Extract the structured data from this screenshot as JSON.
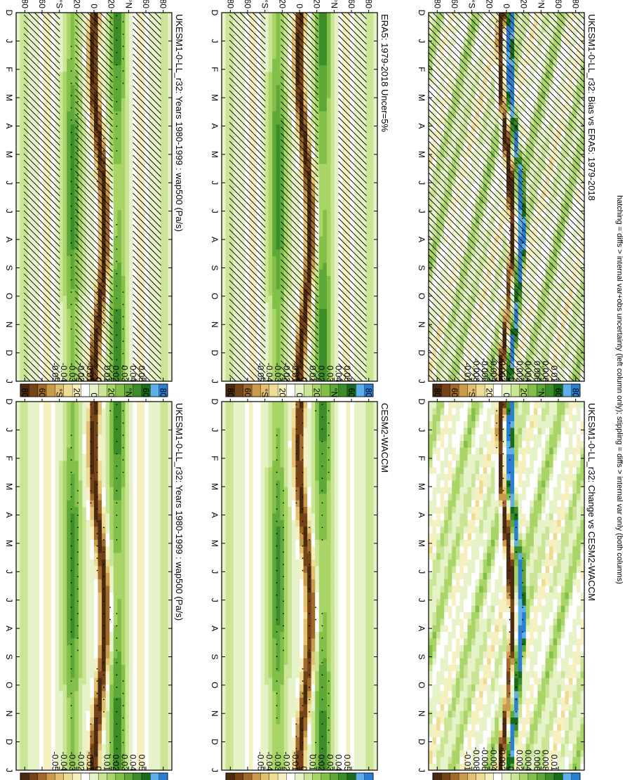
{
  "figure": {
    "footnote": "hatching = diffs > internal var+obs uncertainty (left column only); stippling = diffs > internal var only (both columns)",
    "rotation_deg": 90
  },
  "chart_data": [
    {
      "type": "heatmap",
      "title": "UKESM1-0-LL_r32: Years 1980-1999 : wap500 (Pa/s)",
      "x": [
        "D",
        "J",
        "F",
        "M",
        "A",
        "M",
        "J",
        "J",
        "A",
        "S",
        "O",
        "N",
        "D",
        "J"
      ],
      "y": [
        "80",
        "60",
        "°N",
        "20",
        "0",
        "20",
        "°S",
        "60",
        "80"
      ],
      "ylim": [
        -90,
        90
      ],
      "colorbar": [
        "0.05",
        "0.04",
        "0.03",
        "0.02",
        "0.01",
        "0",
        "-0.01",
        "-0.02",
        "-0.03",
        "-0.04",
        "-0.05"
      ],
      "colors": [
        "#2a7fd4",
        "#5fb0e8",
        "#1a6b1a",
        "#3d8c2a",
        "#5ea83a",
        "#82c04a",
        "#a8d468",
        "#cbe596",
        "#e6f2c8",
        "#ffffff",
        "#f6f0c0",
        "#eedc94",
        "#e2c070",
        "#c99a4a",
        "#a06a2c",
        "#744418",
        "#4a2a10"
      ],
      "amplitude": 0.05,
      "hatching": true,
      "stippling": true
    },
    {
      "type": "heatmap",
      "title": "UKESM1-0-LL_r32: Years 1980-1999 : wap500 (Pa/s)",
      "x": [
        "D",
        "J",
        "F",
        "M",
        "A",
        "M",
        "J",
        "J",
        "A",
        "S",
        "O",
        "N",
        "D",
        "J"
      ],
      "y": [
        "80",
        "60",
        "°N",
        "20",
        "0",
        "20",
        "°S",
        "60",
        "80"
      ],
      "ylim": [
        -90,
        90
      ],
      "colorbar": [
        "0.05",
        "0.04",
        "0.03",
        "0.02",
        "0.01",
        "0",
        "-0.01",
        "-0.02",
        "-0.03",
        "-0.04",
        "-0.05"
      ],
      "colors": [
        "#2a7fd4",
        "#5fb0e8",
        "#1a6b1a",
        "#3d8c2a",
        "#5ea83a",
        "#82c04a",
        "#a8d468",
        "#cbe596",
        "#e6f2c8",
        "#ffffff",
        "#f6f0c0",
        "#eedc94",
        "#e2c070",
        "#c99a4a",
        "#a06a2c",
        "#744418",
        "#4a2a10"
      ],
      "amplitude": 0.05,
      "hatching": false,
      "stippling": true
    },
    {
      "type": "heatmap",
      "title": "ERA5: 1979-2018 Uncer=5%",
      "x": [
        "D",
        "J",
        "F",
        "M",
        "A",
        "M",
        "J",
        "J",
        "A",
        "S",
        "O",
        "N",
        "D",
        "J"
      ],
      "y": [
        "80",
        "60",
        "°N",
        "20",
        "0",
        "20",
        "°S",
        "60",
        "80"
      ],
      "ylim": [
        -90,
        90
      ],
      "colorbar": [
        "0.05",
        "0.04",
        "0.03",
        "0.02",
        "0.01",
        "0",
        "-0.01",
        "-0.02",
        "-0.03",
        "-0.04",
        "-0.05"
      ],
      "colors": [
        "#2a7fd4",
        "#5fb0e8",
        "#1a6b1a",
        "#3d8c2a",
        "#5ea83a",
        "#82c04a",
        "#a8d468",
        "#cbe596",
        "#e6f2c8",
        "#ffffff",
        "#f6f0c0",
        "#eedc94",
        "#e2c070",
        "#c99a4a",
        "#a06a2c",
        "#744418",
        "#4a2a10"
      ],
      "amplitude": 0.05,
      "hatching": true,
      "stippling": false
    },
    {
      "type": "heatmap",
      "title": "CESM2-WACCM",
      "x": [
        "D",
        "J",
        "F",
        "M",
        "A",
        "M",
        "J",
        "J",
        "A",
        "S",
        "O",
        "N",
        "D",
        "J"
      ],
      "y": [
        "80",
        "60",
        "°N",
        "20",
        "0",
        "20",
        "°S",
        "60",
        "80"
      ],
      "ylim": [
        -90,
        90
      ],
      "colorbar": [
        "0.05",
        "0.04",
        "0.03",
        "0.02",
        "0.01",
        "0",
        "-0.01",
        "-0.02",
        "-0.03",
        "-0.04",
        "-0.05"
      ],
      "colors": [
        "#2a7fd4",
        "#5fb0e8",
        "#1a6b1a",
        "#3d8c2a",
        "#5ea83a",
        "#82c04a",
        "#a8d468",
        "#cbe596",
        "#e6f2c8",
        "#ffffff",
        "#f6f0c0",
        "#eedc94",
        "#e2c070",
        "#c99a4a",
        "#a06a2c",
        "#744418",
        "#4a2a10"
      ],
      "amplitude": 0.05,
      "hatching": false,
      "stippling": true
    },
    {
      "type": "heatmap",
      "title": "UKESM1-0-LL_r32: Bias vs ERA5: 1979-2018",
      "x": [
        "D",
        "J",
        "F",
        "M",
        "A",
        "M",
        "J",
        "J",
        "A",
        "S",
        "O",
        "N",
        "D",
        "J"
      ],
      "y": [
        "80",
        "60",
        "°N",
        "20",
        "0",
        "20",
        "°S",
        "60",
        "80"
      ],
      "ylim": [
        -90,
        90
      ],
      "colorbar": [
        "0.01",
        "0.008",
        "0.006",
        "0.004",
        "0.002",
        "0",
        "-0.002",
        "-0.004",
        "-0.006",
        "-0.008",
        "-0.01"
      ],
      "colors": [
        "#2a7fd4",
        "#5fb0e8",
        "#1a6b1a",
        "#3d8c2a",
        "#5ea83a",
        "#82c04a",
        "#a8d468",
        "#cbe596",
        "#e6f2c8",
        "#ffffff",
        "#f6f0c0",
        "#eedc94",
        "#e2c070",
        "#c99a4a",
        "#a06a2c",
        "#744418",
        "#4a2a10"
      ],
      "amplitude": 0.01,
      "hatching": true,
      "stippling": true
    },
    {
      "type": "heatmap",
      "title": "UKESM1-0-LL_r32: Change vs CESM2-WACCM",
      "x": [
        "D",
        "J",
        "F",
        "M",
        "A",
        "M",
        "J",
        "J",
        "A",
        "S",
        "O",
        "N",
        "D",
        "J"
      ],
      "y": [
        "80",
        "60",
        "°N",
        "20",
        "0",
        "20",
        "°S",
        "60",
        "80"
      ],
      "ylim": [
        -90,
        90
      ],
      "colorbar": [
        "0.01",
        "0.008",
        "0.006",
        "0.004",
        "0.002",
        "0",
        "-0.002",
        "-0.004",
        "-0.006",
        "-0.008",
        "-0.01"
      ],
      "colors": [
        "#2a7fd4",
        "#5fb0e8",
        "#1a6b1a",
        "#3d8c2a",
        "#5ea83a",
        "#82c04a",
        "#a8d468",
        "#cbe596",
        "#e6f2c8",
        "#ffffff",
        "#f6f0c0",
        "#eedc94",
        "#e2c070",
        "#c99a4a",
        "#a06a2c",
        "#744418",
        "#4a2a10"
      ],
      "amplitude": 0.01,
      "hatching": false,
      "stippling": true
    }
  ]
}
